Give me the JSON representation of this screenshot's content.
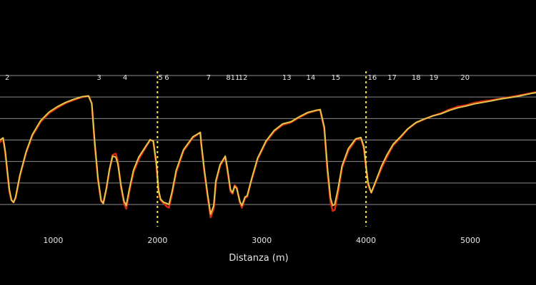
{
  "chart_data": {
    "type": "line",
    "title": "",
    "xlabel": "Distanza (m)",
    "ylabel": "",
    "xlim": [
      490,
      5630
    ],
    "ylim": [
      0,
      6
    ],
    "grid": true,
    "gridlines_y": [
      1,
      2,
      3,
      4,
      5,
      6
    ],
    "x_ticks": [
      1000,
      2000,
      3000,
      4000,
      5000
    ],
    "colors": {
      "lap_a": "#d42a10",
      "lap_b": "#e3c64a",
      "markers": "#f2e64a",
      "grid": "#8c8c8c",
      "text": "#e6e6e6"
    },
    "vertical_markers": [
      2000,
      4000
    ],
    "turn_labels": [
      {
        "label": "2",
        "x": 560
      },
      {
        "label": "3",
        "x": 1440
      },
      {
        "label": "4",
        "x": 1690
      },
      {
        "label": "5",
        "x": 2030
      },
      {
        "label": "6",
        "x": 2090
      },
      {
        "label": "7",
        "x": 2490
      },
      {
        "label": "8",
        "x": 2680
      },
      {
        "label": "11",
        "x": 2745
      },
      {
        "label": "12",
        "x": 2820
      },
      {
        "label": "13",
        "x": 3240
      },
      {
        "label": "14",
        "x": 3470
      },
      {
        "label": "15",
        "x": 3710
      },
      {
        "label": "16",
        "x": 4060
      },
      {
        "label": "17",
        "x": 4250
      },
      {
        "label": "18",
        "x": 4480
      },
      {
        "label": "19",
        "x": 4650
      },
      {
        "label": "20",
        "x": 4950
      }
    ],
    "series": [
      {
        "color": "#d42a10",
        "points": [
          [
            490,
            2.9
          ],
          [
            520,
            3.05
          ],
          [
            540,
            2.4
          ],
          [
            560,
            1.5
          ],
          [
            580,
            0.6
          ],
          [
            600,
            0.2
          ],
          [
            620,
            0.1
          ],
          [
            640,
            0.3
          ],
          [
            680,
            1.3
          ],
          [
            740,
            2.4
          ],
          [
            800,
            3.2
          ],
          [
            880,
            3.85
          ],
          [
            960,
            4.25
          ],
          [
            1040,
            4.5
          ],
          [
            1120,
            4.72
          ],
          [
            1200,
            4.87
          ],
          [
            1280,
            5.0
          ],
          [
            1340,
            5.05
          ],
          [
            1370,
            4.7
          ],
          [
            1400,
            2.7
          ],
          [
            1430,
            1.1
          ],
          [
            1460,
            0.15
          ],
          [
            1480,
            0.05
          ],
          [
            1510,
            0.7
          ],
          [
            1540,
            1.6
          ],
          [
            1570,
            2.3
          ],
          [
            1600,
            2.37
          ],
          [
            1620,
            2.0
          ],
          [
            1650,
            0.8
          ],
          [
            1680,
            0.05
          ],
          [
            1700,
            -0.2
          ],
          [
            1730,
            0.6
          ],
          [
            1770,
            1.5
          ],
          [
            1820,
            2.1
          ],
          [
            1880,
            2.6
          ],
          [
            1930,
            3.0
          ],
          [
            1960,
            2.95
          ],
          [
            1990,
            1.8
          ],
          [
            2010,
            0.6
          ],
          [
            2030,
            0.2
          ],
          [
            2060,
            0.05
          ],
          [
            2090,
            -0.1
          ],
          [
            2110,
            -0.15
          ],
          [
            2140,
            0.5
          ],
          [
            2180,
            1.5
          ],
          [
            2250,
            2.5
          ],
          [
            2340,
            3.1
          ],
          [
            2410,
            3.35
          ],
          [
            2420,
            2.8
          ],
          [
            2450,
            1.5
          ],
          [
            2480,
            0.4
          ],
          [
            2510,
            -0.6
          ],
          [
            2540,
            -0.2
          ],
          [
            2560,
            1.0
          ],
          [
            2600,
            1.8
          ],
          [
            2650,
            2.2
          ],
          [
            2670,
            1.6
          ],
          [
            2700,
            0.6
          ],
          [
            2720,
            0.5
          ],
          [
            2740,
            0.9
          ],
          [
            2760,
            0.8
          ],
          [
            2790,
            0.1
          ],
          [
            2810,
            -0.15
          ],
          [
            2840,
            0.3
          ],
          [
            2860,
            0.35
          ],
          [
            2900,
            1.1
          ],
          [
            2960,
            2.1
          ],
          [
            3040,
            2.9
          ],
          [
            3120,
            3.4
          ],
          [
            3200,
            3.7
          ],
          [
            3280,
            3.82
          ],
          [
            3360,
            4.05
          ],
          [
            3440,
            4.25
          ],
          [
            3520,
            4.37
          ],
          [
            3560,
            4.4
          ],
          [
            3600,
            3.5
          ],
          [
            3630,
            1.5
          ],
          [
            3660,
            0.1
          ],
          [
            3680,
            -0.3
          ],
          [
            3700,
            -0.25
          ],
          [
            3730,
            0.5
          ],
          [
            3770,
            1.7
          ],
          [
            3830,
            2.5
          ],
          [
            3900,
            3.0
          ],
          [
            3950,
            3.1
          ],
          [
            3980,
            2.6
          ],
          [
            4000,
            1.7
          ],
          [
            4020,
            0.9
          ],
          [
            4050,
            0.55
          ],
          [
            4090,
            1.0
          ],
          [
            4150,
            1.7
          ],
          [
            4200,
            2.2
          ],
          [
            4260,
            2.75
          ],
          [
            4320,
            3.05
          ],
          [
            4400,
            3.5
          ],
          [
            4480,
            3.8
          ],
          [
            4560,
            3.97
          ],
          [
            4640,
            4.12
          ],
          [
            4720,
            4.25
          ],
          [
            4800,
            4.42
          ],
          [
            4880,
            4.55
          ],
          [
            4960,
            4.62
          ],
          [
            5040,
            4.73
          ],
          [
            5120,
            4.8
          ],
          [
            5200,
            4.85
          ],
          [
            5280,
            4.92
          ],
          [
            5360,
            4.98
          ],
          [
            5440,
            5.05
          ],
          [
            5520,
            5.12
          ],
          [
            5600,
            5.2
          ],
          [
            5630,
            5.22
          ]
        ]
      },
      {
        "color": "#e3c64a",
        "points": [
          [
            490,
            3.0
          ],
          [
            520,
            3.1
          ],
          [
            540,
            2.5
          ],
          [
            560,
            1.6
          ],
          [
            580,
            0.7
          ],
          [
            600,
            0.2
          ],
          [
            620,
            0.1
          ],
          [
            640,
            0.35
          ],
          [
            680,
            1.35
          ],
          [
            740,
            2.45
          ],
          [
            800,
            3.25
          ],
          [
            880,
            3.9
          ],
          [
            960,
            4.3
          ],
          [
            1040,
            4.55
          ],
          [
            1120,
            4.75
          ],
          [
            1200,
            4.9
          ],
          [
            1280,
            5.02
          ],
          [
            1340,
            5.05
          ],
          [
            1370,
            4.7
          ],
          [
            1400,
            2.8
          ],
          [
            1430,
            1.2
          ],
          [
            1460,
            0.2
          ],
          [
            1480,
            0.05
          ],
          [
            1510,
            0.75
          ],
          [
            1540,
            1.65
          ],
          [
            1570,
            2.25
          ],
          [
            1600,
            2.2
          ],
          [
            1620,
            1.9
          ],
          [
            1650,
            0.9
          ],
          [
            1680,
            0.15
          ],
          [
            1700,
            -0.05
          ],
          [
            1730,
            0.7
          ],
          [
            1770,
            1.6
          ],
          [
            1820,
            2.2
          ],
          [
            1880,
            2.65
          ],
          [
            1930,
            3.02
          ],
          [
            1960,
            2.95
          ],
          [
            1990,
            1.9
          ],
          [
            2010,
            0.7
          ],
          [
            2030,
            0.25
          ],
          [
            2060,
            0.1
          ],
          [
            2090,
            0.05
          ],
          [
            2110,
            0.0
          ],
          [
            2140,
            0.6
          ],
          [
            2180,
            1.6
          ],
          [
            2250,
            2.55
          ],
          [
            2340,
            3.15
          ],
          [
            2410,
            3.35
          ],
          [
            2420,
            2.85
          ],
          [
            2450,
            1.6
          ],
          [
            2480,
            0.5
          ],
          [
            2510,
            -0.45
          ],
          [
            2540,
            -0.05
          ],
          [
            2560,
            1.1
          ],
          [
            2600,
            1.85
          ],
          [
            2650,
            2.25
          ],
          [
            2670,
            1.7
          ],
          [
            2700,
            0.7
          ],
          [
            2720,
            0.55
          ],
          [
            2740,
            0.85
          ],
          [
            2760,
            0.75
          ],
          [
            2790,
            0.15
          ],
          [
            2810,
            -0.05
          ],
          [
            2840,
            0.35
          ],
          [
            2860,
            0.4
          ],
          [
            2900,
            1.15
          ],
          [
            2960,
            2.15
          ],
          [
            3040,
            2.95
          ],
          [
            3120,
            3.45
          ],
          [
            3200,
            3.75
          ],
          [
            3280,
            3.85
          ],
          [
            3360,
            4.08
          ],
          [
            3440,
            4.28
          ],
          [
            3520,
            4.38
          ],
          [
            3560,
            4.42
          ],
          [
            3600,
            3.6
          ],
          [
            3630,
            1.7
          ],
          [
            3660,
            0.3
          ],
          [
            3680,
            -0.05
          ],
          [
            3700,
            0.0
          ],
          [
            3730,
            0.7
          ],
          [
            3770,
            1.8
          ],
          [
            3830,
            2.6
          ],
          [
            3900,
            3.05
          ],
          [
            3950,
            3.12
          ],
          [
            3980,
            2.7
          ],
          [
            4000,
            1.8
          ],
          [
            4020,
            1.0
          ],
          [
            4050,
            0.55
          ],
          [
            4090,
            1.05
          ],
          [
            4150,
            1.8
          ],
          [
            4200,
            2.3
          ],
          [
            4260,
            2.8
          ],
          [
            4320,
            3.1
          ],
          [
            4400,
            3.52
          ],
          [
            4480,
            3.82
          ],
          [
            4560,
            3.98
          ],
          [
            4640,
            4.12
          ],
          [
            4720,
            4.22
          ],
          [
            4800,
            4.38
          ],
          [
            4880,
            4.5
          ],
          [
            4960,
            4.58
          ],
          [
            5040,
            4.68
          ],
          [
            5120,
            4.75
          ],
          [
            5200,
            4.82
          ],
          [
            5280,
            4.9
          ],
          [
            5360,
            4.96
          ],
          [
            5440,
            5.02
          ],
          [
            5520,
            5.1
          ],
          [
            5600,
            5.18
          ],
          [
            5630,
            5.2
          ]
        ]
      }
    ]
  }
}
